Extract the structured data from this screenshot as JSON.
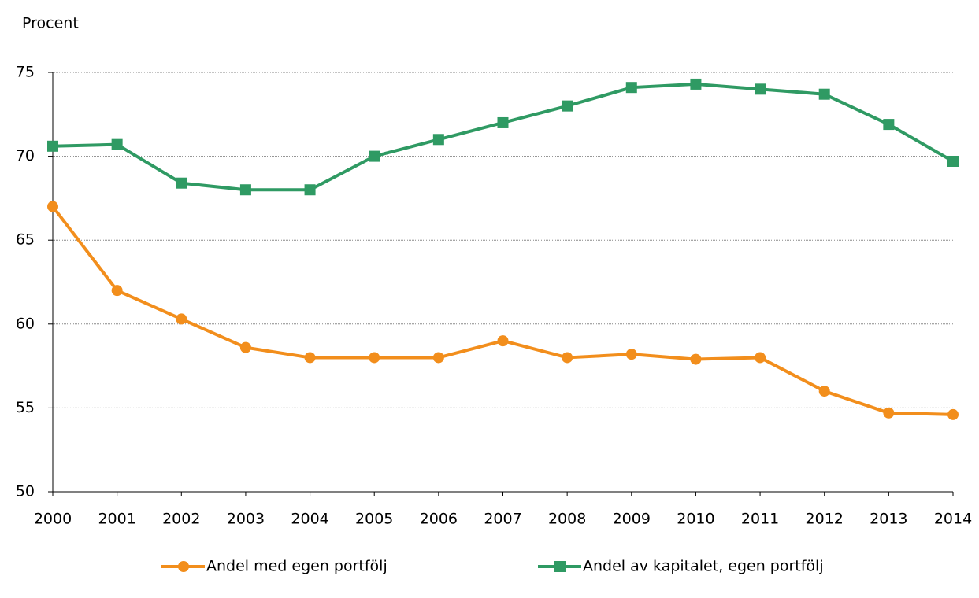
{
  "chart_data": {
    "type": "line",
    "y_label": "Procent",
    "categories": [
      "2000",
      "2001",
      "2002",
      "2003",
      "2004",
      "2005",
      "2006",
      "2007",
      "2008",
      "2009",
      "2010",
      "2011",
      "2012",
      "2013",
      "2014"
    ],
    "series": [
      {
        "name": "Andel med egen portfölj",
        "color": "#f28e1c",
        "marker": "circle",
        "values": [
          67.0,
          62.0,
          60.3,
          58.6,
          58.0,
          58.0,
          58.0,
          59.0,
          58.0,
          58.2,
          57.9,
          58.0,
          56.0,
          54.7,
          54.6
        ]
      },
      {
        "name": "Andel av kapitalet, egen portfölj",
        "color": "#2f9a63",
        "marker": "square",
        "values": [
          70.6,
          70.7,
          68.4,
          68.0,
          68.0,
          70.0,
          71.0,
          72.0,
          73.0,
          74.1,
          74.3,
          74.0,
          73.7,
          71.9,
          69.7
        ]
      }
    ],
    "ylim": [
      50,
      75
    ],
    "yticks": [
      50,
      55,
      60,
      65,
      70,
      75
    ],
    "grid": true,
    "legend": "bottom"
  }
}
